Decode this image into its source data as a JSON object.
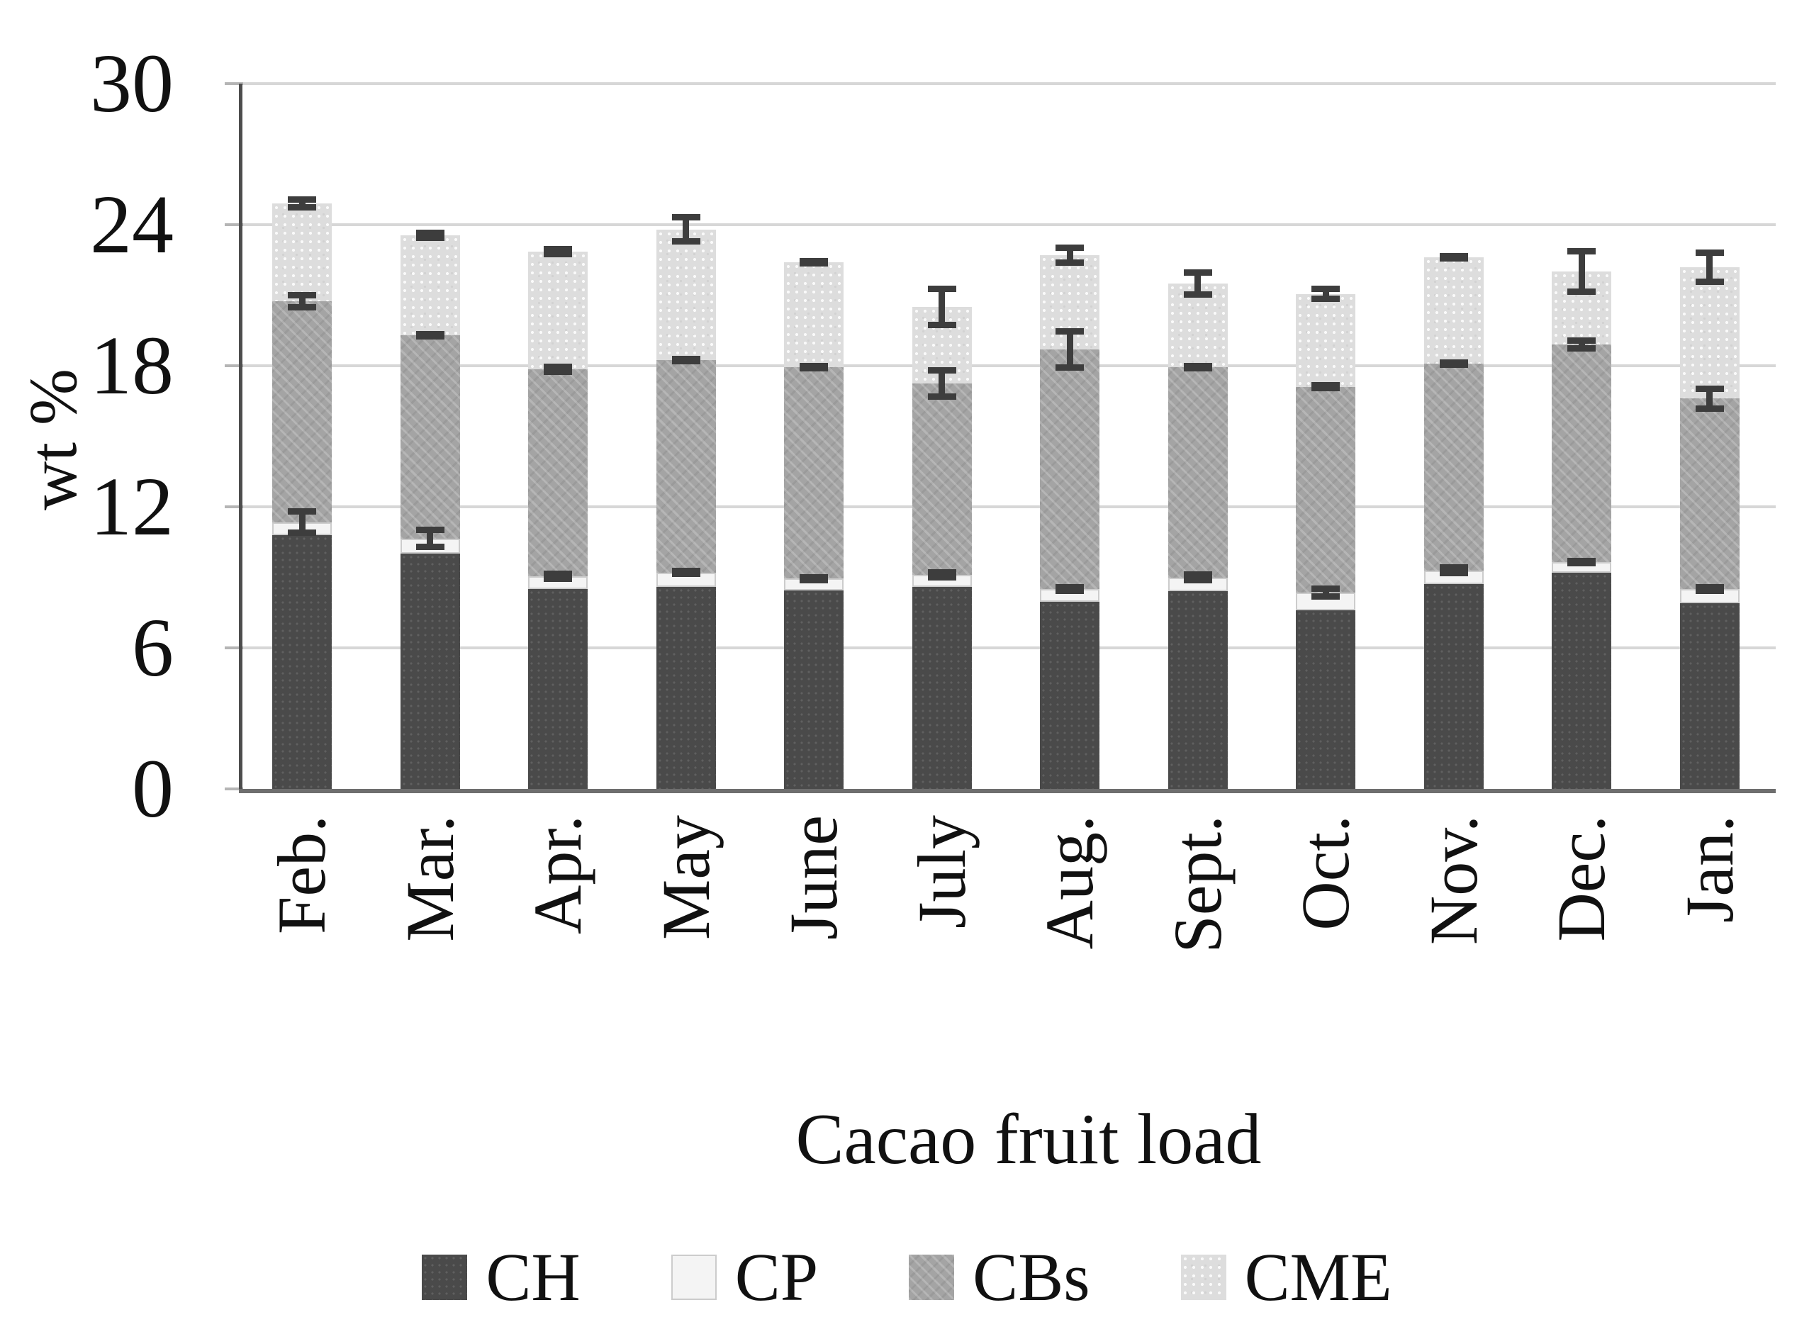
{
  "chart_data": {
    "type": "bar",
    "stacked": true,
    "title": "",
    "xlabel": "Cacao fruit load",
    "ylabel": "wt %",
    "ylim": [
      0,
      30
    ],
    "yticks": [
      0,
      6,
      12,
      18,
      24,
      30
    ],
    "grid": true,
    "legend_position": "bottom",
    "categories": [
      "Feb.",
      "Mar.",
      "Apr.",
      "May",
      "June",
      "July",
      "Aug.",
      "Sept.",
      "Oct.",
      "Nov.",
      "Dec.",
      "Jan."
    ],
    "series": [
      {
        "name": "CH",
        "values": [
          10.8,
          10.0,
          8.5,
          8.6,
          8.45,
          8.6,
          7.95,
          8.4,
          7.6,
          8.7,
          9.2,
          7.9
        ]
      },
      {
        "name": "CP",
        "values": [
          0.55,
          0.65,
          0.55,
          0.6,
          0.5,
          0.5,
          0.55,
          0.6,
          0.75,
          0.6,
          0.45,
          0.6
        ]
      },
      {
        "name": "CBs",
        "values": [
          9.4,
          8.65,
          8.8,
          9.05,
          9.0,
          8.15,
          10.2,
          8.95,
          8.75,
          8.8,
          9.25,
          8.1
        ]
      },
      {
        "name": "CME",
        "values": [
          4.15,
          4.25,
          5.0,
          5.55,
          4.45,
          3.25,
          4.0,
          3.55,
          3.95,
          4.5,
          3.1,
          5.6
        ]
      }
    ],
    "stack_totals": [
      24.9,
      23.55,
      22.85,
      23.8,
      22.4,
      20.5,
      22.7,
      21.5,
      21.1,
      22.6,
      22.0,
      22.2
    ],
    "error_bars": {
      "cp_top": [
        0.6,
        0.5,
        0.25,
        0.2,
        0.2,
        0.25,
        0.2,
        0.25,
        0.3,
        0.25,
        0.15,
        0.2
      ],
      "cbs_top": [
        0.4,
        0.15,
        0.25,
        0.15,
        0.15,
        0.7,
        0.9,
        0.15,
        0.2,
        0.15,
        0.3,
        0.55
      ],
      "cme_top": [
        0.3,
        0.25,
        0.25,
        0.65,
        0.15,
        0.9,
        0.45,
        0.6,
        0.35,
        0.15,
        1.0,
        0.75
      ]
    },
    "legend": [
      "CH",
      "CP",
      "CBs",
      "CME"
    ]
  },
  "colors": {
    "CH": "#4a4a4a",
    "CP": "#f4f4f4",
    "CBs": "#a4a4a4",
    "CME": "#dddddd",
    "error_bar": "#3d3d3d",
    "gridline": "#d7d7d7",
    "y_axis": "#4d4d4d",
    "baseline": "#6e6e6e",
    "text": "#111111",
    "background": "#ffffff"
  }
}
